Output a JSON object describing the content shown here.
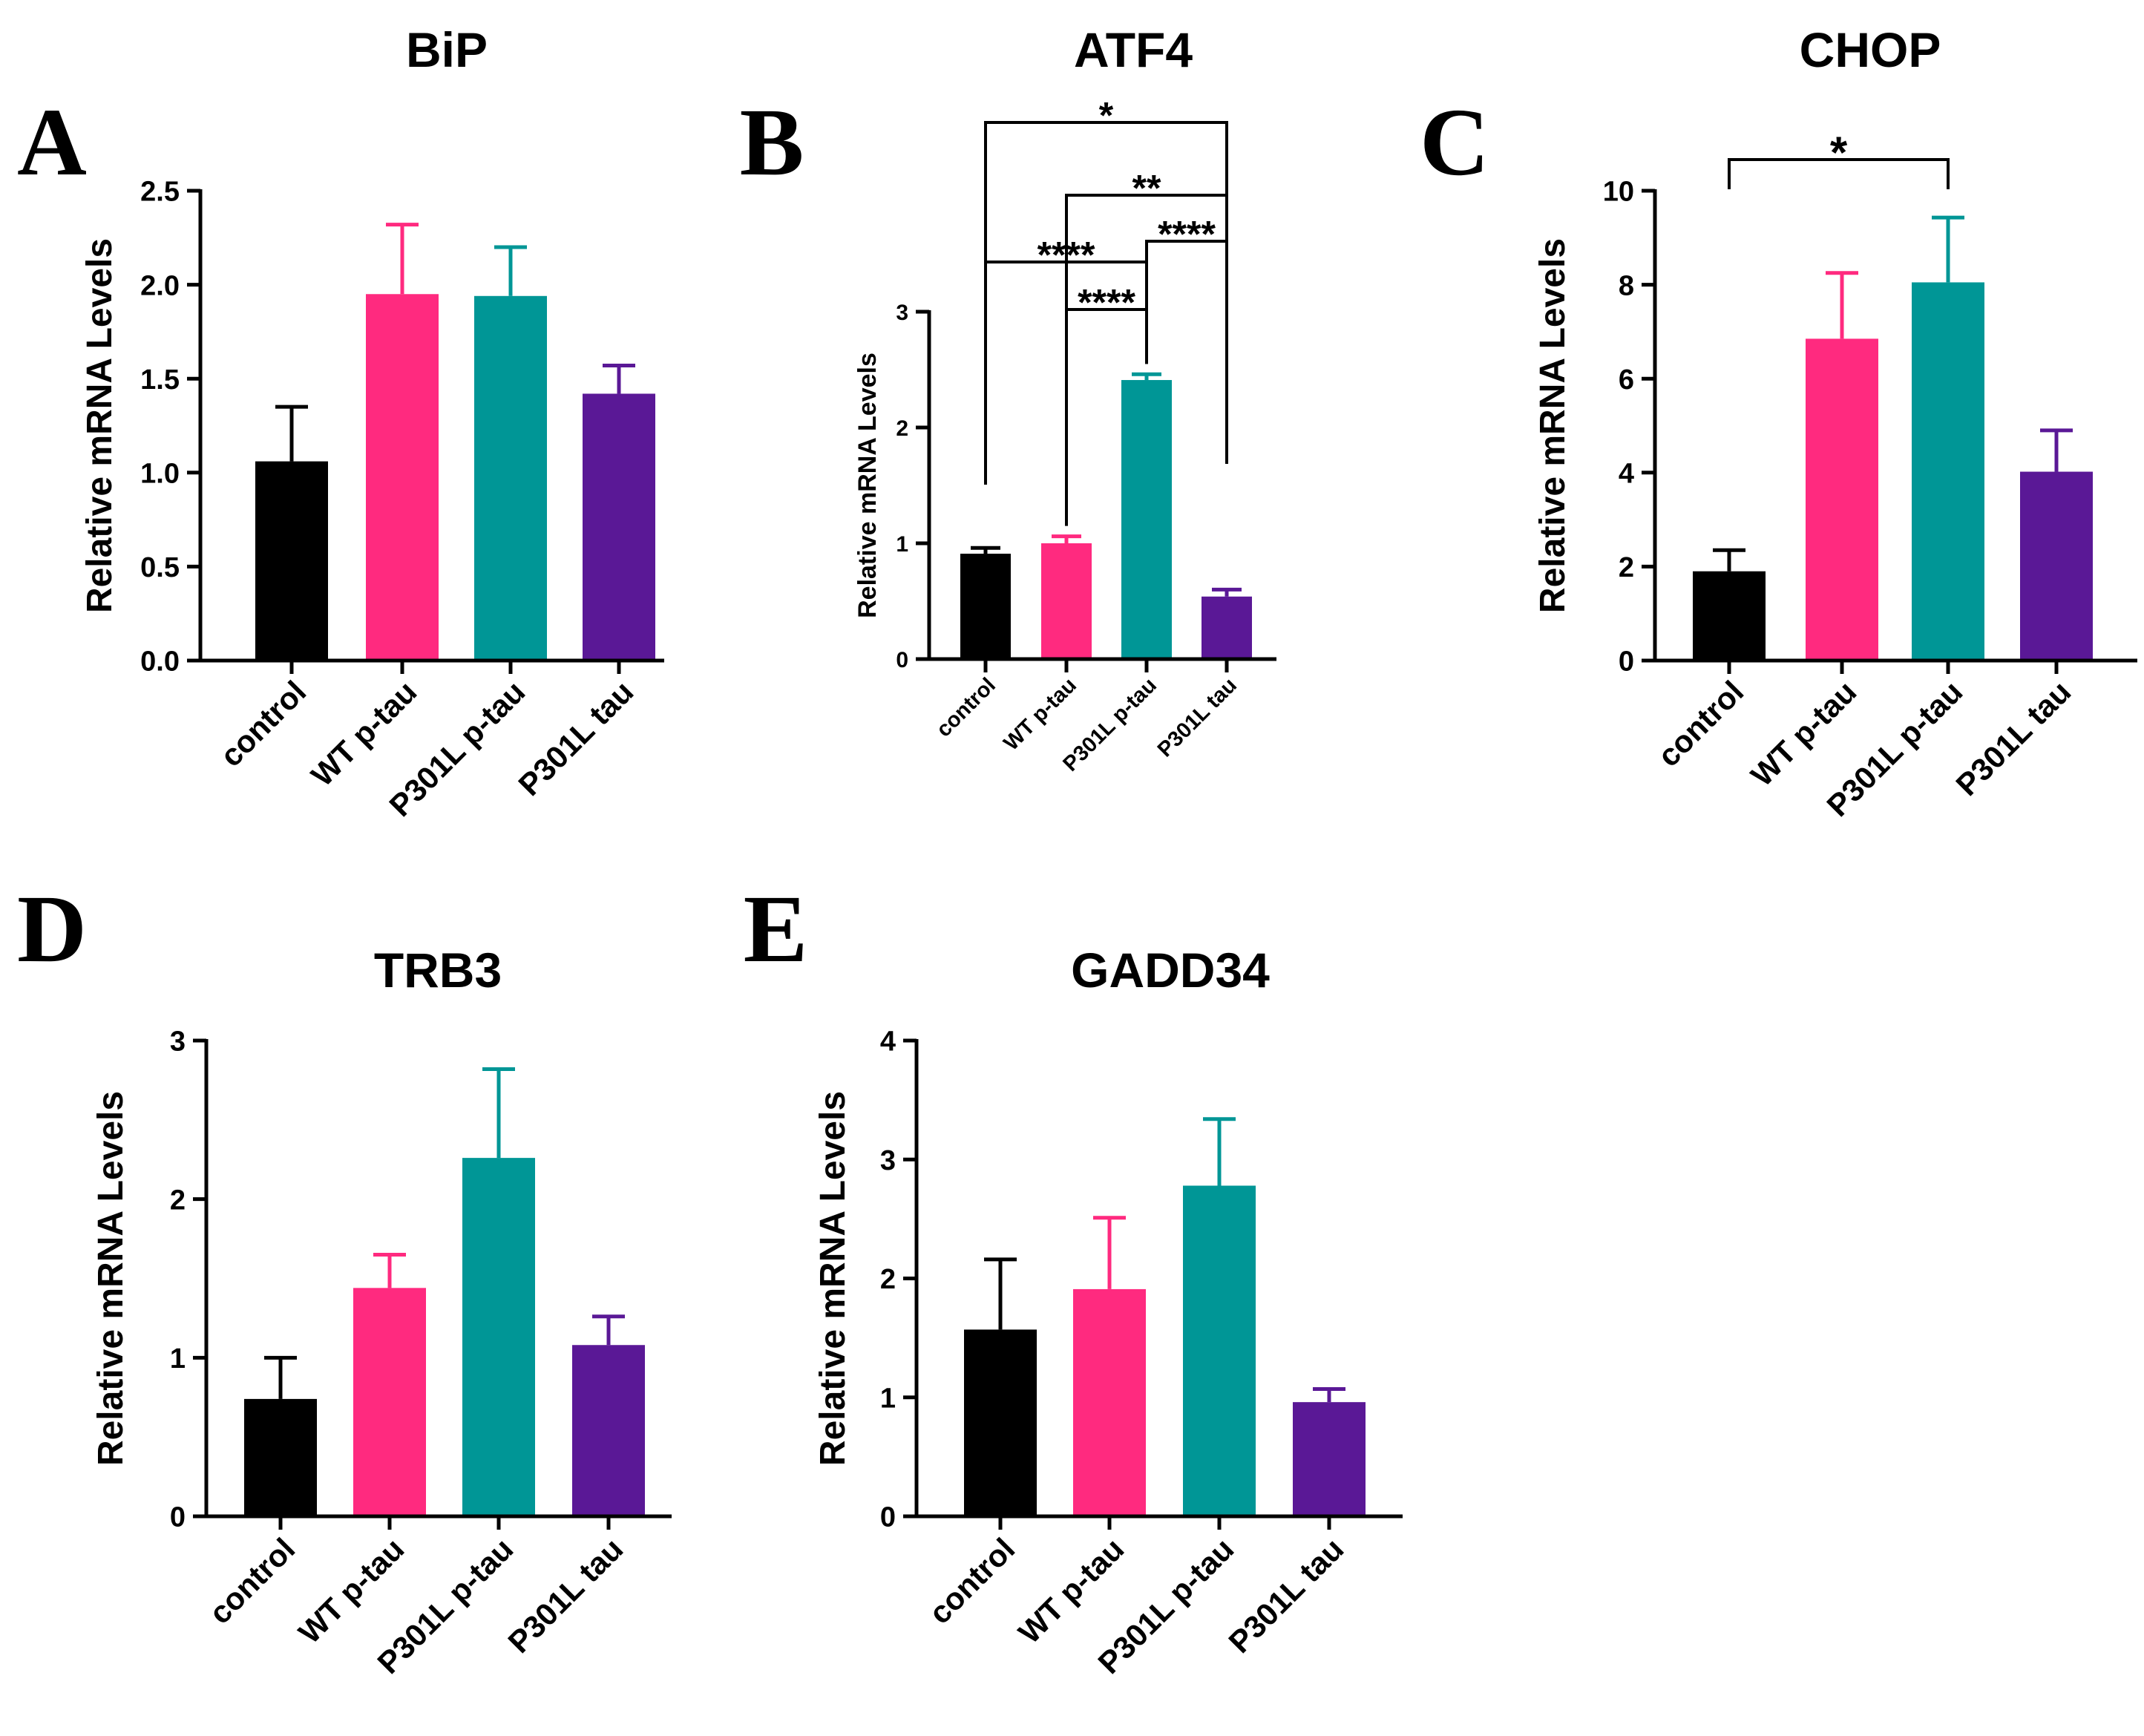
{
  "colors": {
    "control": "#000000",
    "WT p-tau": "#ff2a7f",
    "P301L p-tau": "#009696",
    "P301L tau": "#5a1896"
  },
  "chart_data": [
    {
      "panel": "A",
      "type": "bar",
      "title": "BiP",
      "ylabel": "Relative mRNA Levels",
      "xlabel": "",
      "categories": [
        "control",
        "WT p-tau",
        "P301L p-tau",
        "P301L tau"
      ],
      "values": [
        1.06,
        1.95,
        1.94,
        1.42
      ],
      "errors": [
        0.29,
        0.37,
        0.26,
        0.15
      ],
      "ylim": [
        0,
        2.5
      ],
      "yticks": [
        0,
        0.5,
        1.0,
        1.5,
        2.0,
        2.5
      ],
      "ytick_labels": [
        "0.0",
        "0.5",
        "1.0",
        "1.5",
        "2.0",
        "2.5"
      ],
      "significance": []
    },
    {
      "panel": "B",
      "type": "bar",
      "title": "ATF4",
      "ylabel": "Relative mRNA Levels",
      "xlabel": "",
      "categories": [
        "control",
        "WT p-tau",
        "P301L p-tau",
        "P301L tau"
      ],
      "values": [
        0.91,
        1.0,
        2.41,
        0.54
      ],
      "errors": [
        0.05,
        0.06,
        0.05,
        0.06
      ],
      "ylim": [
        0,
        3
      ],
      "yticks": [
        0,
        1,
        2,
        3
      ],
      "ytick_labels": [
        "0",
        "1",
        "2",
        "3"
      ],
      "significance": [
        {
          "from": 1,
          "to": 2,
          "label": "****"
        },
        {
          "from": 0,
          "to": 2,
          "label": "****"
        },
        {
          "from": 2,
          "to": 3,
          "label": "****"
        },
        {
          "from": 1,
          "to": 3,
          "label": "**"
        },
        {
          "from": 0,
          "to": 3,
          "label": "*"
        }
      ]
    },
    {
      "panel": "C",
      "type": "bar",
      "title": "CHOP",
      "ylabel": "Relative mRNA Levels",
      "xlabel": "",
      "categories": [
        "control",
        "WT p-tau",
        "P301L p-tau",
        "P301L tau"
      ],
      "values": [
        1.9,
        6.85,
        8.05,
        4.02
      ],
      "errors": [
        0.45,
        1.4,
        1.38,
        0.88
      ],
      "ylim": [
        0,
        10
      ],
      "yticks": [
        0,
        2,
        4,
        6,
        8,
        10
      ],
      "ytick_labels": [
        "0",
        "2",
        "4",
        "6",
        "8",
        "10"
      ],
      "significance": [
        {
          "from": 0,
          "to": 2,
          "label": "*"
        }
      ]
    },
    {
      "panel": "D",
      "type": "bar",
      "title": "TRB3",
      "ylabel": "Relative mRNA Levels",
      "xlabel": "",
      "categories": [
        "control",
        "WT p-tau",
        "P301L p-tau",
        "P301L tau"
      ],
      "values": [
        0.74,
        1.44,
        2.26,
        1.08
      ],
      "errors": [
        0.26,
        0.21,
        0.56,
        0.18
      ],
      "ylim": [
        0,
        3
      ],
      "yticks": [
        0,
        1,
        2,
        3
      ],
      "ytick_labels": [
        "0",
        "1",
        "2",
        "3"
      ],
      "significance": []
    },
    {
      "panel": "E",
      "type": "bar",
      "title": "GADD34",
      "ylabel": "Relative mRNA Levels",
      "xlabel": "",
      "categories": [
        "control",
        "WT p-tau",
        "P301L p-tau",
        "P301L tau"
      ],
      "values": [
        1.57,
        1.91,
        2.78,
        0.96
      ],
      "errors": [
        0.59,
        0.6,
        0.56,
        0.11
      ],
      "ylim": [
        0,
        4
      ],
      "yticks": [
        0,
        1,
        2,
        3,
        4
      ],
      "ytick_labels": [
        "0",
        "1",
        "2",
        "3",
        "4"
      ],
      "significance": []
    }
  ]
}
